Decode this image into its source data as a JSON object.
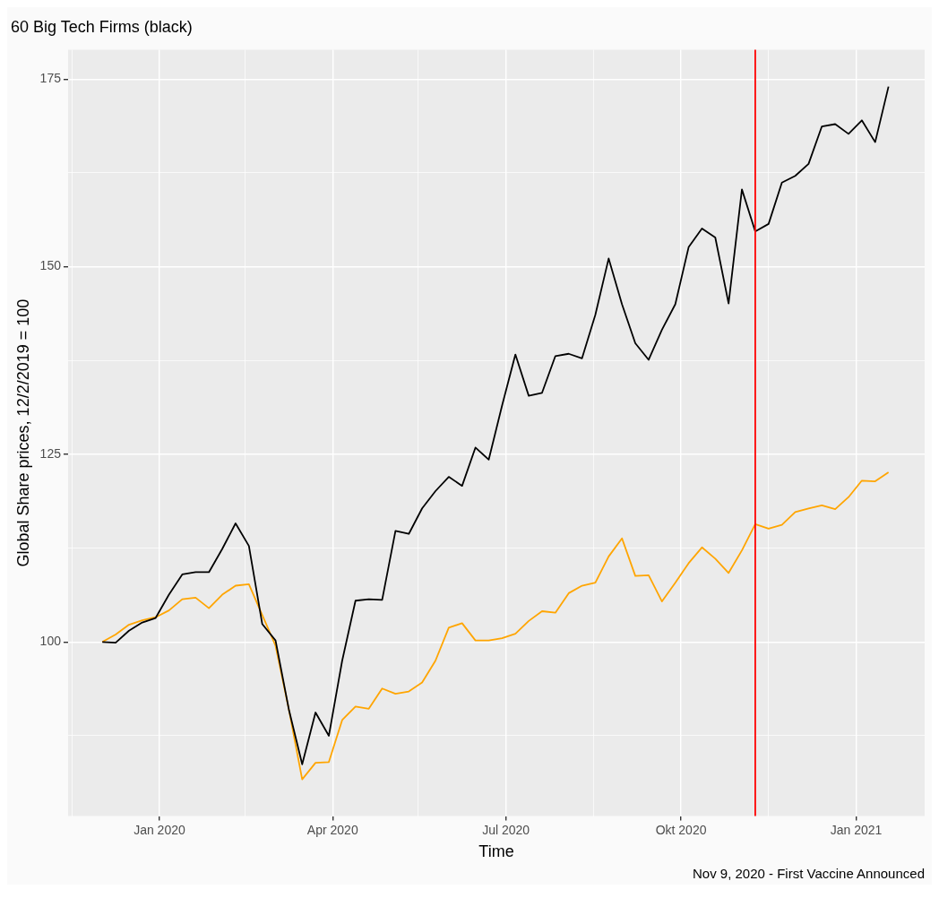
{
  "chart_data": {
    "type": "line",
    "title": "60 Big Tech Firms (black)",
    "xlabel": "Time",
    "ylabel": "Global Share prices, 12/2/2019 = 100",
    "x": [
      "2019-12-02",
      "2019-12-09",
      "2019-12-16",
      "2019-12-23",
      "2019-12-30",
      "2020-01-06",
      "2020-01-13",
      "2020-01-20",
      "2020-01-27",
      "2020-02-03",
      "2020-02-10",
      "2020-02-17",
      "2020-02-24",
      "2020-03-02",
      "2020-03-09",
      "2020-03-16",
      "2020-03-23",
      "2020-03-30",
      "2020-04-06",
      "2020-04-13",
      "2020-04-20",
      "2020-04-27",
      "2020-05-04",
      "2020-05-11",
      "2020-05-18",
      "2020-05-25",
      "2020-06-01",
      "2020-06-08",
      "2020-06-15",
      "2020-06-22",
      "2020-06-29",
      "2020-07-06",
      "2020-07-13",
      "2020-07-20",
      "2020-07-27",
      "2020-08-03",
      "2020-08-10",
      "2020-08-17",
      "2020-08-24",
      "2020-08-31",
      "2020-09-07",
      "2020-09-14",
      "2020-09-21",
      "2020-09-28",
      "2020-10-05",
      "2020-10-12",
      "2020-10-19",
      "2020-10-26",
      "2020-11-02",
      "2020-11-09",
      "2020-11-16",
      "2020-11-23",
      "2020-11-30",
      "2020-12-07",
      "2020-12-14",
      "2020-12-21",
      "2020-12-28",
      "2021-01-04",
      "2021-01-11",
      "2021-01-18"
    ],
    "series": [
      {
        "color": "#000000",
        "values": [
          100,
          99.9,
          101.5,
          102.6,
          103.2,
          106.3,
          109,
          109.3,
          109.3,
          112.4,
          115.8,
          112.8,
          102.4,
          100.2,
          91,
          83.7,
          90.6,
          87.5,
          97.5,
          105.5,
          105.7,
          105.6,
          114.8,
          114.4,
          117.8,
          120.1,
          122,
          120.8,
          125.9,
          124.3,
          131.5,
          138.3,
          132.8,
          133.2,
          138.1,
          138.4,
          137.8,
          143.6,
          151.1,
          145,
          139.8,
          137.6,
          141.6,
          145,
          152.6,
          155.1,
          153.9,
          145.1,
          160.3,
          154.7,
          155.7,
          161.2,
          162.1,
          163.7,
          168.7,
          169,
          167.7,
          169.5,
          166.6,
          174
        ]
      },
      {
        "color": "#ffa500",
        "values": [
          100,
          101,
          102.3,
          102.9,
          103.3,
          104.2,
          105.7,
          105.9,
          104.5,
          106.3,
          107.5,
          107.7,
          103.6,
          99.5,
          91,
          81.7,
          83.9,
          84,
          89.6,
          91.4,
          91.1,
          93.8,
          93.1,
          93.4,
          94.6,
          97.5,
          101.9,
          102.5,
          100.2,
          100.2,
          100.5,
          101.1,
          102.8,
          104.1,
          103.9,
          106.5,
          107.5,
          107.9,
          111.4,
          113.8,
          108.8,
          108.9,
          105.4,
          107.9,
          110.5,
          112.6,
          111.1,
          109.2,
          112.2,
          115.7,
          115.1,
          115.6,
          117.3,
          117.8,
          118.2,
          117.7,
          119.3,
          121.5,
          121.4,
          122.6
        ]
      }
    ],
    "xlim": [
      "2019-11-14",
      "2021-02-06"
    ],
    "xticks": [
      {
        "value": "2019-11-16",
        "label": null
      },
      {
        "value": "2020-01-01",
        "label": "Jan 2020"
      },
      {
        "value": "2020-02-15",
        "label": null
      },
      {
        "value": "2020-04-01",
        "label": "Apr 2020"
      },
      {
        "value": "2020-05-16",
        "label": null
      },
      {
        "value": "2020-07-01",
        "label": "Jul 2020"
      },
      {
        "value": "2020-08-16",
        "label": null
      },
      {
        "value": "2020-10-01",
        "label": "Okt 2020"
      },
      {
        "value": "2020-11-16",
        "label": null
      },
      {
        "value": "2021-01-01",
        "label": "Jan 2021"
      }
    ],
    "ylim": [
      76.8,
      178.9
    ],
    "yticks": [
      {
        "value": 87.5,
        "label": null
      },
      100,
      {
        "value": 112.5,
        "label": null
      },
      125,
      {
        "value": 137.5,
        "label": null
      },
      150,
      {
        "value": 162.5,
        "label": null
      },
      175
    ],
    "ref_lines": [
      {
        "axis": "x",
        "value": "2020-11-09",
        "color": "#ff0000"
      }
    ],
    "annotations": [
      "Nov 9, 2020 - First Vaccine Announced"
    ],
    "grid": true,
    "legend": false,
    "marker": "none",
    "line_style": "solid"
  }
}
